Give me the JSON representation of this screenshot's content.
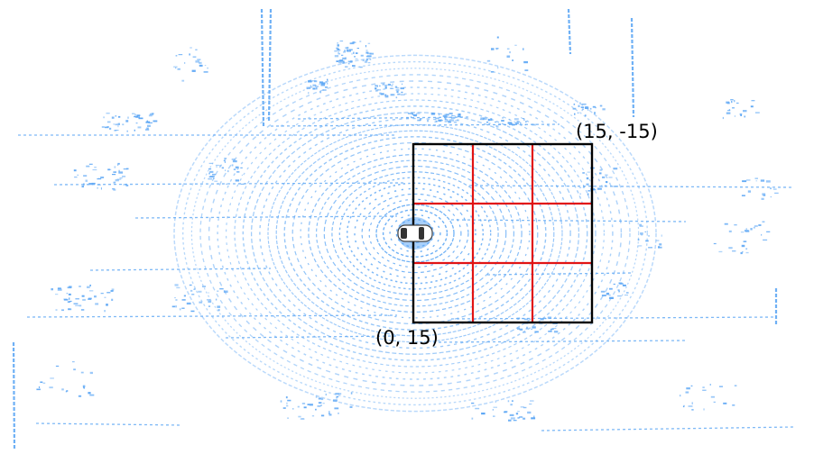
{
  "colors": {
    "points": "#5fa8f5",
    "grid_outline": "#000000",
    "grid_lines": "#e11414",
    "background": "#ffffff"
  },
  "diagram": {
    "corner_top_right_label": "(15, -15)",
    "corner_bottom_left_label": "(0, 15)",
    "grid_divisions": 3,
    "ego_vehicle_icon": "car-top-view-icon"
  }
}
